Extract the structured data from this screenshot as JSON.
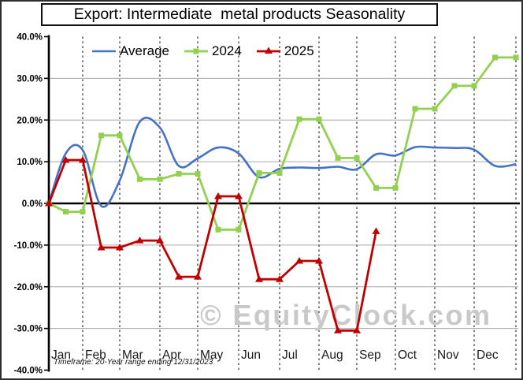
{
  "title": "Export: Intermediate  metal products Seasonality",
  "chart_data": {
    "type": "line",
    "title": "Export: Intermediate  metal products Seasonality",
    "watermark": "© EquityClock.com",
    "footnote": "Timeframe: 20-Year range ending 12/31/2023",
    "x_axis": {
      "months": [
        "Jan",
        "Feb",
        "Mar",
        "Apr",
        "May",
        "Jun",
        "Jul",
        "Aug",
        "Sep",
        "Oct",
        "Nov",
        "Dec"
      ],
      "points_per_month": 2,
      "note": "Each series starts at 0.0% on Jan 1, then has mid-month and month-end values (semi-monthly)."
    },
    "y_axis": {
      "min": -40,
      "max": 40,
      "step": 10,
      "format": "percent",
      "tick_labels": [
        "40.0%",
        "30.0%",
        "20.0%",
        "10.0%",
        "0.0%",
        "-10.0%",
        "-20.0%",
        "-30.0%",
        "-40.0%"
      ]
    },
    "legend_position": "top",
    "grid": {
      "horizontal_solid": true,
      "vertical_monthly_dashed": true
    },
    "series": [
      {
        "name": "Average",
        "color": "#4472C4",
        "marker": "none",
        "line": "smooth",
        "values": [
          0,
          12.0,
          12.8,
          -0.6,
          5.5,
          19.6,
          18.2,
          9.0,
          10.8,
          13.4,
          12.0,
          6.3,
          8.3,
          8.6,
          8.5,
          8.8,
          8.2,
          11.8,
          11.5,
          13.5,
          13.4,
          13.3,
          12.9,
          9.0,
          9.4
        ]
      },
      {
        "name": "2024",
        "color": "#92D050",
        "marker": "square",
        "line": "straight",
        "values": [
          0,
          -2.0,
          -2.0,
          16.3,
          16.3,
          5.8,
          5.8,
          7.1,
          7.1,
          -6.3,
          -6.3,
          7.3,
          7.3,
          20.2,
          20.2,
          10.9,
          10.9,
          3.7,
          3.7,
          22.7,
          22.7,
          28.2,
          28.2,
          35.0,
          35.0
        ]
      },
      {
        "name": "2025",
        "color": "#C00000",
        "marker": "triangle",
        "line": "straight",
        "values": [
          0,
          10.4,
          10.4,
          -10.6,
          -10.6,
          -8.9,
          -8.9,
          -17.6,
          -17.6,
          1.7,
          1.7,
          -18.2,
          -18.2,
          -13.8,
          -13.8,
          -30.5,
          -30.5,
          -6.7
        ]
      }
    ]
  }
}
